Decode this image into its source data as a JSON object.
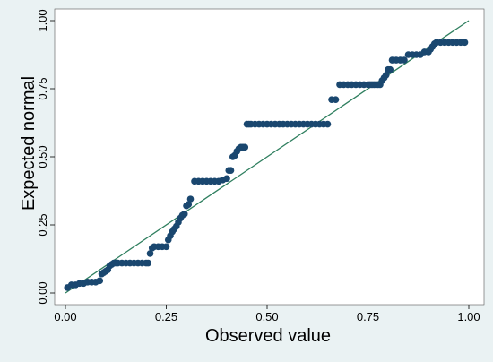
{
  "chart_data": {
    "type": "scatter",
    "title": "",
    "xlabel": "Observed value",
    "ylabel": "Expected normal",
    "xlim": [
      0,
      1
    ],
    "ylim": [
      0,
      1
    ],
    "x_ticks": [
      "0.00",
      "0.25",
      "0.50",
      "0.75",
      "1.00"
    ],
    "y_ticks": [
      "0.00",
      "0.25",
      "0.50",
      "0.75",
      "1.00"
    ],
    "grid": false,
    "reference_line": {
      "x": [
        0,
        1
      ],
      "y": [
        0,
        1
      ]
    },
    "colors": {
      "background": "#eaf2f3",
      "plot_background": "#ffffff",
      "points": "#1a476f",
      "reference_line": "#2f7f5f"
    },
    "series": [
      {
        "x": [
          0.005,
          0.015,
          0.025,
          0.035,
          0.045,
          0.055,
          0.065,
          0.075,
          0.085,
          0.09,
          0.095,
          0.1,
          0.105,
          0.11,
          0.115,
          0.12,
          0.125,
          0.13,
          0.14,
          0.15,
          0.16,
          0.17,
          0.18,
          0.19,
          0.2,
          0.205,
          0.21,
          0.215,
          0.22,
          0.23,
          0.24,
          0.25,
          0.255,
          0.26,
          0.265,
          0.27,
          0.275,
          0.28,
          0.285,
          0.29,
          0.295,
          0.3,
          0.305,
          0.31,
          0.32,
          0.33,
          0.34,
          0.35,
          0.36,
          0.37,
          0.38,
          0.39,
          0.4,
          0.405,
          0.41,
          0.415,
          0.42,
          0.425,
          0.43,
          0.435,
          0.44,
          0.445,
          0.45,
          0.455,
          0.46,
          0.47,
          0.48,
          0.49,
          0.5,
          0.51,
          0.52,
          0.53,
          0.54,
          0.55,
          0.56,
          0.57,
          0.58,
          0.59,
          0.6,
          0.61,
          0.62,
          0.63,
          0.64,
          0.65,
          0.66,
          0.67,
          0.68,
          0.69,
          0.7,
          0.71,
          0.72,
          0.73,
          0.74,
          0.75,
          0.755,
          0.76,
          0.765,
          0.77,
          0.775,
          0.78,
          0.785,
          0.79,
          0.795,
          0.8,
          0.805,
          0.81,
          0.82,
          0.83,
          0.84,
          0.85,
          0.86,
          0.87,
          0.88,
          0.89,
          0.9,
          0.905,
          0.91,
          0.915,
          0.92,
          0.93,
          0.94,
          0.95,
          0.96,
          0.97,
          0.98,
          0.99
        ],
        "y": [
          0.02,
          0.03,
          0.03,
          0.035,
          0.035,
          0.04,
          0.04,
          0.04,
          0.045,
          0.07,
          0.075,
          0.08,
          0.085,
          0.1,
          0.105,
          0.11,
          0.11,
          0.11,
          0.11,
          0.11,
          0.11,
          0.11,
          0.11,
          0.11,
          0.11,
          0.11,
          0.145,
          0.165,
          0.17,
          0.17,
          0.17,
          0.17,
          0.195,
          0.21,
          0.225,
          0.235,
          0.245,
          0.26,
          0.275,
          0.285,
          0.29,
          0.32,
          0.325,
          0.345,
          0.41,
          0.41,
          0.41,
          0.41,
          0.41,
          0.41,
          0.41,
          0.415,
          0.42,
          0.45,
          0.45,
          0.5,
          0.505,
          0.52,
          0.53,
          0.535,
          0.535,
          0.535,
          0.62,
          0.62,
          0.62,
          0.62,
          0.62,
          0.62,
          0.62,
          0.62,
          0.62,
          0.62,
          0.62,
          0.62,
          0.62,
          0.62,
          0.62,
          0.62,
          0.62,
          0.62,
          0.62,
          0.62,
          0.62,
          0.62,
          0.71,
          0.71,
          0.765,
          0.765,
          0.765,
          0.765,
          0.765,
          0.765,
          0.765,
          0.765,
          0.765,
          0.765,
          0.765,
          0.765,
          0.765,
          0.765,
          0.78,
          0.79,
          0.8,
          0.82,
          0.82,
          0.855,
          0.855,
          0.855,
          0.855,
          0.875,
          0.875,
          0.875,
          0.875,
          0.885,
          0.885,
          0.895,
          0.905,
          0.915,
          0.92,
          0.92,
          0.92,
          0.92,
          0.92,
          0.92,
          0.92,
          0.92
        ]
      }
    ]
  }
}
